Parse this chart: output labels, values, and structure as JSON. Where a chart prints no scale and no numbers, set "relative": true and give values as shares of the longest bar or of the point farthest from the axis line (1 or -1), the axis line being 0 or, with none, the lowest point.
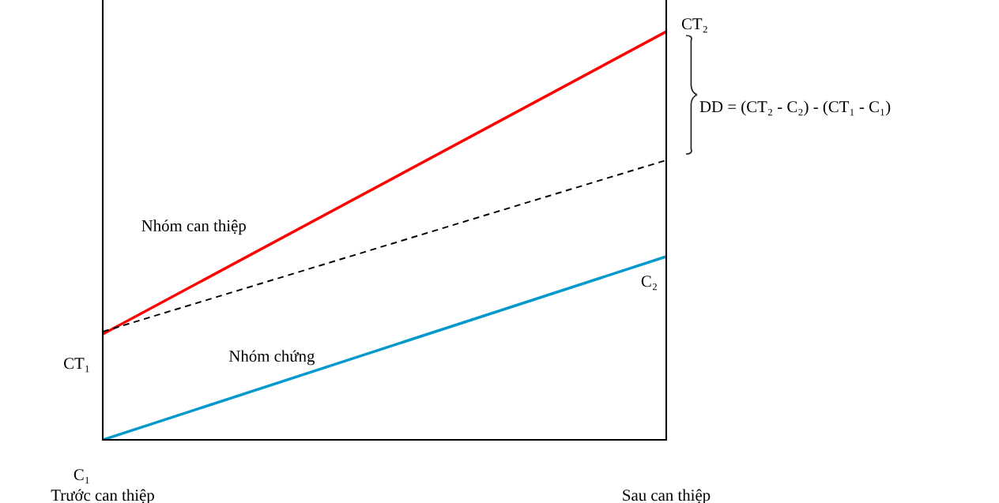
{
  "chart_data": {
    "type": "line",
    "relative": true,
    "categories": [
      "Trước can thiệp",
      "Sau can thiệp"
    ],
    "series": [
      {
        "name": "Nhóm can thiệp",
        "color": "#ff0000",
        "values": [
          0.259,
          1
        ],
        "line_style": "solid"
      },
      {
        "name": "Nhóm chứng",
        "color": "#0099cc",
        "values": [
          0,
          0.449
        ],
        "line_style": "solid"
      },
      {
        "color": "#000000",
        "values": [
          0.265,
          0.685
        ],
        "line_style": "dashed"
      }
    ],
    "annotations": [
      "CT₂",
      "C₂",
      "CT₁",
      "C₁",
      "DD = (CT₂ - C₂) - (CT₁ - C₁)"
    ],
    "marker": "none"
  }
}
